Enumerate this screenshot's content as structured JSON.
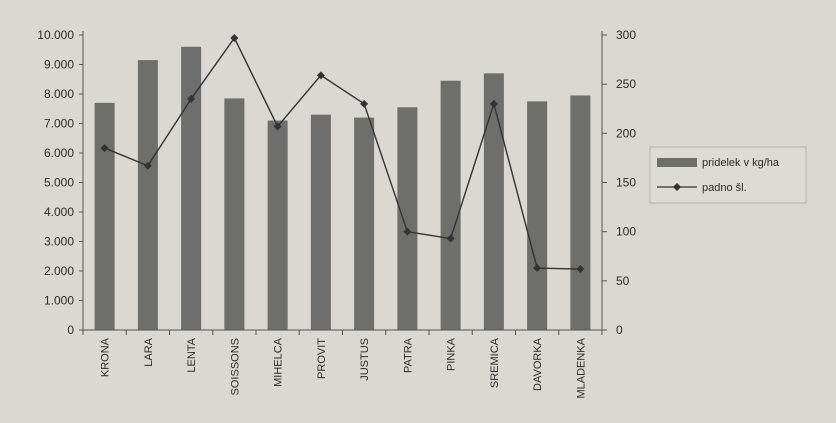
{
  "chart_data": {
    "type": "bar",
    "categories": [
      "KRONA",
      "LARA",
      "LENTA",
      "SOISSONS",
      "MIHELCA",
      "PROVIT",
      "JUSTUS",
      "PATRA",
      "PINKA",
      "SREMICA",
      "DAVORKA",
      "MLADENKA"
    ],
    "series": [
      {
        "name": "pridelek v kg/ha",
        "type": "bar",
        "axis": "left",
        "color": "#6e6e6a",
        "values": [
          7700,
          9150,
          9600,
          7850,
          7100,
          7300,
          7200,
          7550,
          8450,
          8700,
          7750,
          7950
        ]
      },
      {
        "name": "padno šl.",
        "type": "line",
        "axis": "right",
        "color": "#333333",
        "values": [
          185,
          167,
          235,
          297,
          207,
          259,
          230,
          100,
          93,
          230,
          63,
          62
        ]
      }
    ],
    "y_left": {
      "min": 0,
      "max": 10000,
      "ticks": [
        "0",
        "1.000",
        "2.000",
        "3.000",
        "4.000",
        "5.000",
        "6.000",
        "7.000",
        "8.000",
        "9.000",
        "10.000"
      ]
    },
    "y_right": {
      "min": 0,
      "max": 300,
      "ticks": [
        "0",
        "50",
        "100",
        "150",
        "200",
        "250",
        "300"
      ]
    },
    "grid": false,
    "legend_position": "right",
    "title": "",
    "xlabel": "",
    "ylabel": ""
  }
}
